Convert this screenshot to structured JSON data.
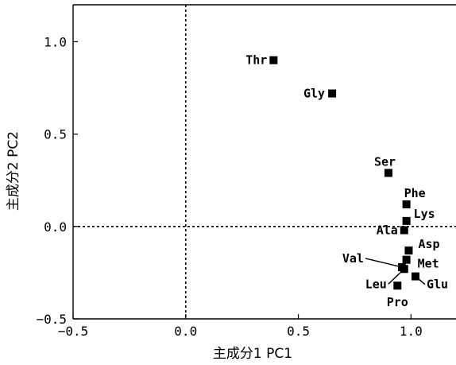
{
  "chart_data": {
    "type": "scatter",
    "title": "",
    "xlabel": "主成分1 PC1",
    "ylabel": "主成分2 PC2",
    "xlim": [
      -0.5,
      1.2
    ],
    "ylim": [
      -0.5,
      1.2
    ],
    "x_ticks": [
      -0.5,
      0.0,
      0.5,
      1.0
    ],
    "x_tick_labels": [
      "−0.5",
      "0.0",
      "0.5",
      "1.0"
    ],
    "y_ticks": [
      -0.5,
      0.0,
      0.5,
      1.0
    ],
    "y_tick_labels": [
      "−0.5",
      "0.0",
      "0.5",
      "1.0"
    ],
    "reference_lines": {
      "x": 0,
      "y": 0,
      "style": "dashed"
    },
    "grid": false,
    "marker": "filled-square",
    "points": [
      {
        "label": "Thr",
        "x": 0.39,
        "y": 0.9
      },
      {
        "label": "Gly",
        "x": 0.65,
        "y": 0.72
      },
      {
        "label": "Ser",
        "x": 0.9,
        "y": 0.29
      },
      {
        "label": "Phe",
        "x": 0.98,
        "y": 0.12
      },
      {
        "label": "Lys",
        "x": 0.98,
        "y": 0.03
      },
      {
        "label": "Ala",
        "x": 0.97,
        "y": -0.02
      },
      {
        "label": "Asp",
        "x": 0.99,
        "y": -0.13
      },
      {
        "label": "Met",
        "x": 0.98,
        "y": -0.18
      },
      {
        "label": "Val",
        "x": 0.96,
        "y": -0.22
      },
      {
        "label": "Leu",
        "x": 0.97,
        "y": -0.23
      },
      {
        "label": "Glu",
        "x": 1.02,
        "y": -0.27
      },
      {
        "label": "Pro",
        "x": 0.94,
        "y": -0.32
      }
    ]
  }
}
